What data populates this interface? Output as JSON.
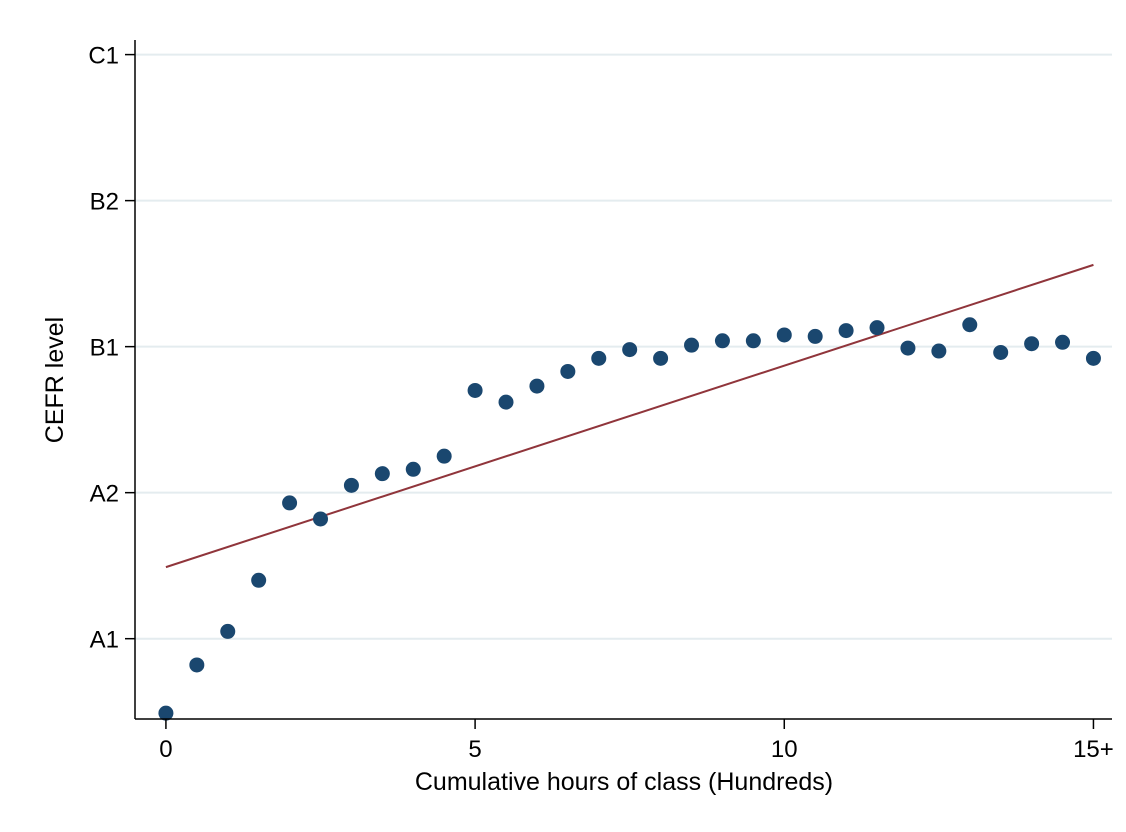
{
  "chart_data": {
    "type": "scatter",
    "title": "",
    "xlabel": "Cumulative hours of class (Hundreds)",
    "ylabel": "CEFR level",
    "xlim": [
      -0.5,
      15.3
    ],
    "ylim": [
      0.45,
      5.1
    ],
    "x_ticks": [
      {
        "value": 0,
        "label": "0"
      },
      {
        "value": 5,
        "label": "5"
      },
      {
        "value": 10,
        "label": "10"
      },
      {
        "value": 15,
        "label": "15+"
      }
    ],
    "y_ticks": [
      {
        "value": 1,
        "label": "A1"
      },
      {
        "value": 2,
        "label": "A2"
      },
      {
        "value": 3,
        "label": "B1"
      },
      {
        "value": 4,
        "label": "B2"
      },
      {
        "value": 5,
        "label": "C1"
      }
    ],
    "grid": "horizontal",
    "legend": "none",
    "series": [
      {
        "type": "scatter",
        "color": "#1a476f",
        "x": [
          0,
          0.5,
          1,
          1.5,
          2,
          2.5,
          3,
          3.5,
          4,
          4.5,
          5,
          5.5,
          6,
          6.5,
          7,
          7.5,
          8,
          8.5,
          9,
          9.5,
          10,
          10.5,
          11,
          11.5,
          12,
          12.5,
          13,
          13.5,
          14,
          14.5,
          15
        ],
        "y": [
          0.49,
          0.82,
          1.05,
          1.4,
          1.93,
          1.82,
          2.05,
          2.13,
          2.16,
          2.25,
          2.7,
          2.62,
          2.73,
          2.83,
          2.92,
          2.98,
          2.92,
          3.01,
          3.04,
          3.04,
          3.08,
          3.07,
          3.11,
          3.13,
          2.99,
          2.97,
          3.15,
          2.96,
          3.02,
          3.03,
          2.92
        ]
      },
      {
        "type": "line",
        "color": "#90353b",
        "x": [
          0,
          15
        ],
        "y": [
          1.49,
          3.56
        ]
      }
    ]
  }
}
